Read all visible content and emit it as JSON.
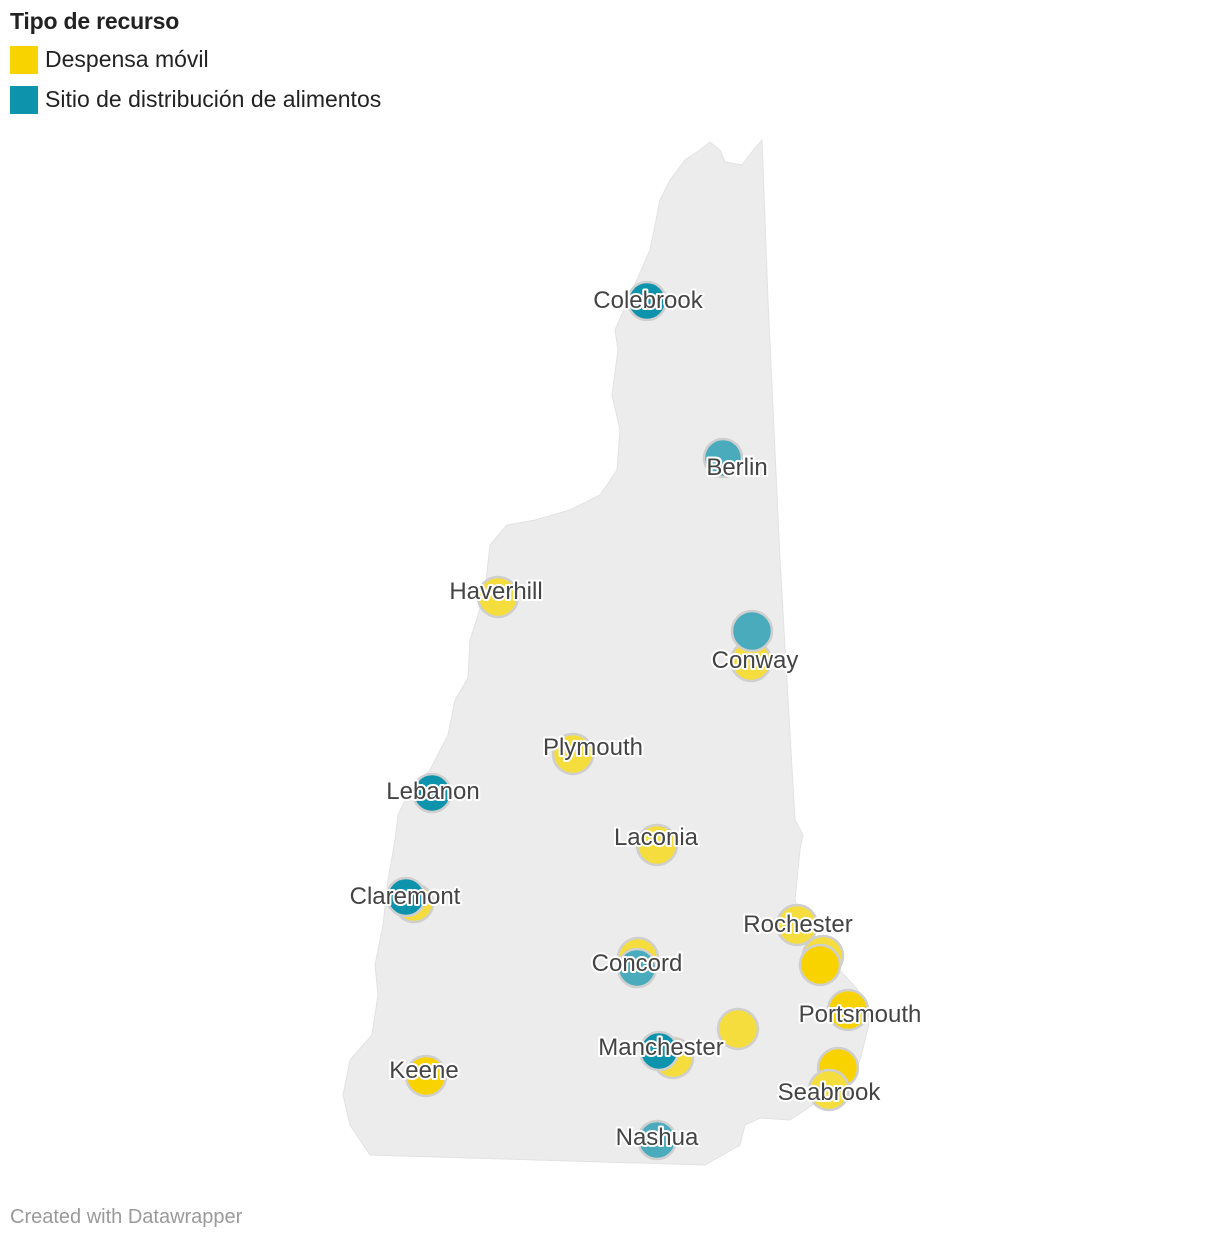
{
  "legend": {
    "title": "Tipo de recurso",
    "items": [
      {
        "label": "Despensa móvil",
        "color": "#f8d300"
      },
      {
        "label": "Sitio de distribución de alimentos",
        "color": "#0e93ad"
      }
    ]
  },
  "map": {
    "region": "New Hampshire",
    "cities": [
      {
        "name": "Colebrook"
      },
      {
        "name": "Berlin"
      },
      {
        "name": "Haverhill"
      },
      {
        "name": "Conway"
      },
      {
        "name": "Plymouth"
      },
      {
        "name": "Lebanon"
      },
      {
        "name": "Laconia"
      },
      {
        "name": "Claremont"
      },
      {
        "name": "Rochester"
      },
      {
        "name": "Concord"
      },
      {
        "name": "Portsmouth"
      },
      {
        "name": "Manchester"
      },
      {
        "name": "Keene"
      },
      {
        "name": "Seabrook"
      },
      {
        "name": "Nashua"
      }
    ]
  },
  "footer": {
    "credit": "Created with Datawrapper"
  }
}
